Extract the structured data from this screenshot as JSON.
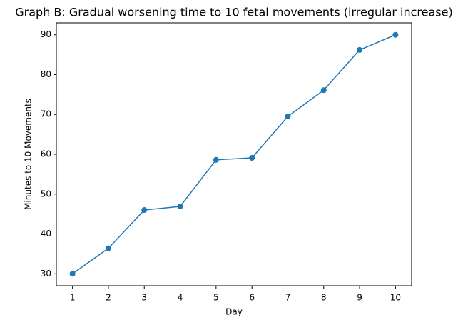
{
  "chart_data": {
    "type": "line",
    "title": "Graph B: Gradual worsening time to 10 fetal movements (irregular increase)",
    "x_label": "Day",
    "y_label": "Minutes to 10 Movements",
    "x": [
      1,
      2,
      3,
      4,
      5,
      6,
      7,
      8,
      9,
      10
    ],
    "series": [
      {
        "name": "Minutes to 10 Movements",
        "color": "#1f77b4",
        "values": [
          30,
          36.4,
          46.0,
          46.9,
          58.6,
          59.1,
          69.5,
          76.1,
          86.2,
          90
        ]
      }
    ],
    "xlim": [
      0.55,
      10.45
    ],
    "xticks": [
      1,
      2,
      3,
      4,
      5,
      6,
      7,
      8,
      9,
      10
    ],
    "ylim": [
      27,
      93
    ],
    "yticks": [
      30,
      40,
      50,
      60,
      70,
      80,
      90
    ],
    "grid": false,
    "markers": true
  }
}
